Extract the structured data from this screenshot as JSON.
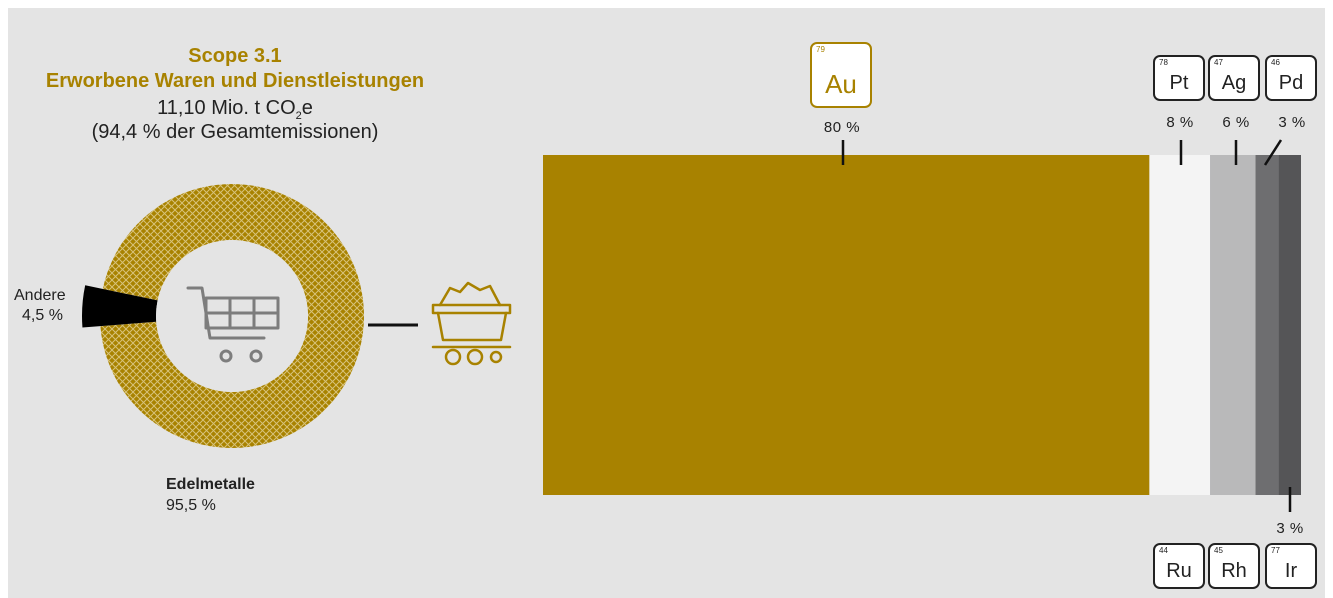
{
  "header": {
    "title_line1": "Scope 3.1",
    "title_line2": "Erworbene Waren und Dienstleistungen",
    "emissions_prefix": "11,10 Mio. t CO",
    "emissions_sub": "2",
    "emissions_suffix": "e",
    "share_text": "(94,4 % der Gesamtemissionen)"
  },
  "colors": {
    "gold": "#a88200",
    "background": "#e4e4e4",
    "other": "#000000",
    "Pt": "#f4f4f4",
    "Ag": "#b9b9ba",
    "Pd": "#6e6e70",
    "Ir": "#555557"
  },
  "icons": {
    "center": "shopping-cart-icon",
    "connector": "ore-cart-icon"
  },
  "donut_labels": {
    "other_name": "Andere",
    "other_value": "4,5 %",
    "main_name": "Edelmetalle",
    "main_value": "95,5 %"
  },
  "chart_data": [
    {
      "type": "pie",
      "title": "",
      "categories": [
        "Edelmetalle",
        "Andere"
      ],
      "values": [
        95.5,
        4.5
      ],
      "unit": "%"
    },
    {
      "type": "bar",
      "orientation": "stacked-horizontal",
      "categories": [
        "Au",
        "Pt",
        "Ag",
        "Pd",
        "Ir"
      ],
      "values": [
        80,
        8,
        6,
        3,
        3
      ],
      "labels": [
        "80 %",
        "8 %",
        "6 %",
        "3 %",
        "3 %"
      ],
      "unit": "%",
      "element_numbers": {
        "Au": "79",
        "Pt": "78",
        "Ag": "47",
        "Pd": "46",
        "Ru": "44",
        "Rh": "45",
        "Ir": "77"
      },
      "bottom_group": [
        "Ru",
        "Rh",
        "Ir"
      ]
    }
  ]
}
